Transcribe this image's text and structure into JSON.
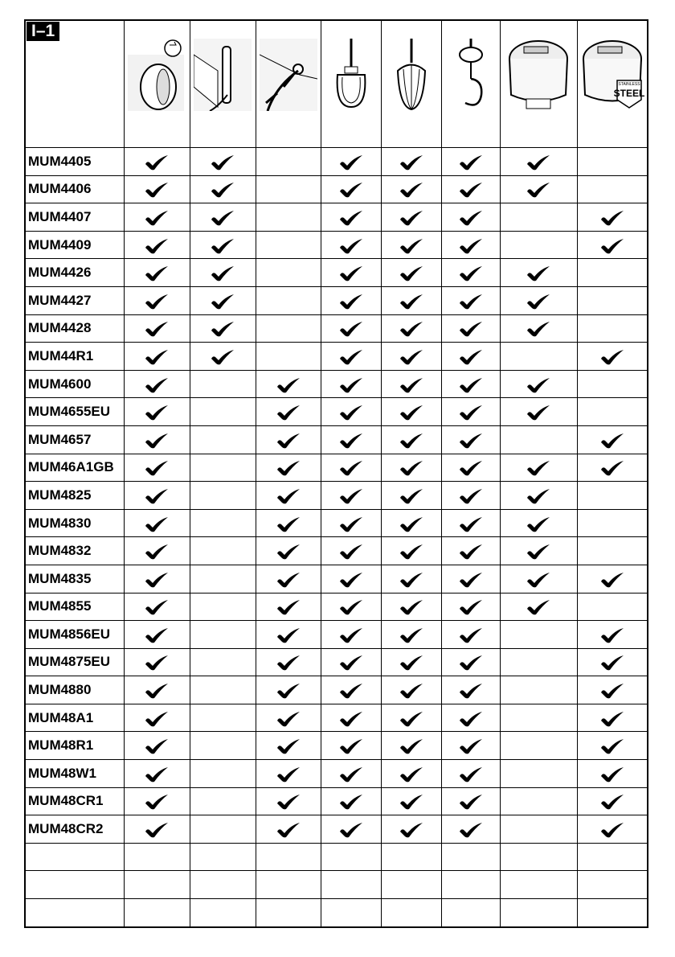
{
  "section_label": "I–1",
  "columns": [
    {
      "icon": "speed-dial-icon"
    },
    {
      "icon": "cord-storage-icon"
    },
    {
      "icon": "cord-pull-icon"
    },
    {
      "icon": "stirring-hook-icon"
    },
    {
      "icon": "whisk-icon"
    },
    {
      "icon": "kneading-hook-icon"
    },
    {
      "icon": "plastic-bowl-icon"
    },
    {
      "icon": "stainless-steel-bowl-icon",
      "logo_text": "STAINLESS STEEL"
    }
  ],
  "rows": [
    {
      "model": "MUM4405",
      "checks": [
        1,
        1,
        0,
        1,
        1,
        1,
        1,
        0
      ]
    },
    {
      "model": "MUM4406",
      "checks": [
        1,
        1,
        0,
        1,
        1,
        1,
        1,
        0
      ]
    },
    {
      "model": "MUM4407",
      "checks": [
        1,
        1,
        0,
        1,
        1,
        1,
        0,
        1
      ]
    },
    {
      "model": "MUM4409",
      "checks": [
        1,
        1,
        0,
        1,
        1,
        1,
        0,
        1
      ]
    },
    {
      "model": "MUM4426",
      "checks": [
        1,
        1,
        0,
        1,
        1,
        1,
        1,
        0
      ]
    },
    {
      "model": "MUM4427",
      "checks": [
        1,
        1,
        0,
        1,
        1,
        1,
        1,
        0
      ]
    },
    {
      "model": "MUM4428",
      "checks": [
        1,
        1,
        0,
        1,
        1,
        1,
        1,
        0
      ]
    },
    {
      "model": "MUM44R1",
      "checks": [
        1,
        1,
        0,
        1,
        1,
        1,
        0,
        1
      ]
    },
    {
      "model": "MUM4600",
      "checks": [
        1,
        0,
        1,
        1,
        1,
        1,
        1,
        0
      ]
    },
    {
      "model": "MUM4655EU",
      "checks": [
        1,
        0,
        1,
        1,
        1,
        1,
        1,
        0
      ]
    },
    {
      "model": "MUM4657",
      "checks": [
        1,
        0,
        1,
        1,
        1,
        1,
        0,
        1
      ]
    },
    {
      "model": "MUM46A1GB",
      "checks": [
        1,
        0,
        1,
        1,
        1,
        1,
        1,
        1
      ]
    },
    {
      "model": "MUM4825",
      "checks": [
        1,
        0,
        1,
        1,
        1,
        1,
        1,
        0
      ]
    },
    {
      "model": "MUM4830",
      "checks": [
        1,
        0,
        1,
        1,
        1,
        1,
        1,
        0
      ]
    },
    {
      "model": "MUM4832",
      "checks": [
        1,
        0,
        1,
        1,
        1,
        1,
        1,
        0
      ]
    },
    {
      "model": "MUM4835",
      "checks": [
        1,
        0,
        1,
        1,
        1,
        1,
        1,
        1
      ]
    },
    {
      "model": "MUM4855",
      "checks": [
        1,
        0,
        1,
        1,
        1,
        1,
        1,
        0
      ]
    },
    {
      "model": "MUM4856EU",
      "checks": [
        1,
        0,
        1,
        1,
        1,
        1,
        0,
        1
      ]
    },
    {
      "model": "MUM4875EU",
      "checks": [
        1,
        0,
        1,
        1,
        1,
        1,
        0,
        1
      ]
    },
    {
      "model": "MUM4880",
      "checks": [
        1,
        0,
        1,
        1,
        1,
        1,
        0,
        1
      ]
    },
    {
      "model": "MUM48A1",
      "checks": [
        1,
        0,
        1,
        1,
        1,
        1,
        0,
        1
      ]
    },
    {
      "model": "MUM48R1",
      "checks": [
        1,
        0,
        1,
        1,
        1,
        1,
        0,
        1
      ]
    },
    {
      "model": "MUM48W1",
      "checks": [
        1,
        0,
        1,
        1,
        1,
        1,
        0,
        1
      ]
    },
    {
      "model": "MUM48CR1",
      "checks": [
        1,
        0,
        1,
        1,
        1,
        1,
        0,
        1
      ]
    },
    {
      "model": "MUM48CR2",
      "checks": [
        1,
        0,
        1,
        1,
        1,
        1,
        0,
        1
      ]
    },
    {
      "model": "",
      "checks": [
        0,
        0,
        0,
        0,
        0,
        0,
        0,
        0
      ]
    },
    {
      "model": "",
      "checks": [
        0,
        0,
        0,
        0,
        0,
        0,
        0,
        0
      ]
    },
    {
      "model": "",
      "checks": [
        0,
        0,
        0,
        0,
        0,
        0,
        0,
        0
      ]
    }
  ]
}
